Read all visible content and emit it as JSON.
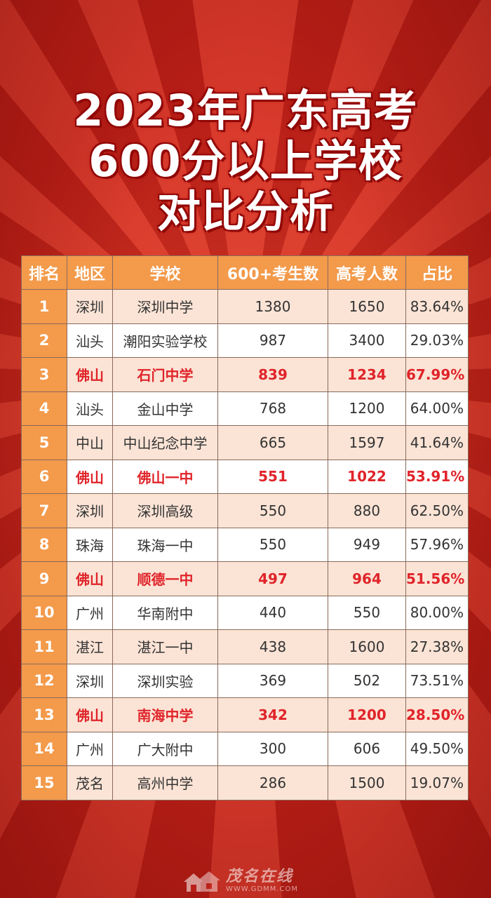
{
  "title": {
    "line1": "2023年广东高考",
    "line2": "600分以上学校",
    "line3": "对比分析"
  },
  "table": {
    "headers": [
      "排名",
      "地区",
      "学校",
      "600+考生数",
      "高考人数",
      "占比"
    ],
    "rows": [
      {
        "rank": "1",
        "region": "深圳",
        "school": "深圳中学",
        "count600": "1380",
        "total": "1650",
        "ratio": "83.64%",
        "highlight": false
      },
      {
        "rank": "2",
        "region": "汕头",
        "school": "潮阳实验学校",
        "count600": "987",
        "total": "3400",
        "ratio": "29.03%",
        "highlight": false
      },
      {
        "rank": "3",
        "region": "佛山",
        "school": "石门中学",
        "count600": "839",
        "total": "1234",
        "ratio": "67.99%",
        "highlight": true
      },
      {
        "rank": "4",
        "region": "汕头",
        "school": "金山中学",
        "count600": "768",
        "total": "1200",
        "ratio": "64.00%",
        "highlight": false
      },
      {
        "rank": "5",
        "region": "中山",
        "school": "中山纪念中学",
        "count600": "665",
        "total": "1597",
        "ratio": "41.64%",
        "highlight": false
      },
      {
        "rank": "6",
        "region": "佛山",
        "school": "佛山一中",
        "count600": "551",
        "total": "1022",
        "ratio": "53.91%",
        "highlight": true
      },
      {
        "rank": "7",
        "region": "深圳",
        "school": "深圳高级",
        "count600": "550",
        "total": "880",
        "ratio": "62.50%",
        "highlight": false
      },
      {
        "rank": "8",
        "region": "珠海",
        "school": "珠海一中",
        "count600": "550",
        "total": "949",
        "ratio": "57.96%",
        "highlight": false
      },
      {
        "rank": "9",
        "region": "佛山",
        "school": "顺德一中",
        "count600": "497",
        "total": "964",
        "ratio": "51.56%",
        "highlight": true
      },
      {
        "rank": "10",
        "region": "广州",
        "school": "华南附中",
        "count600": "440",
        "total": "550",
        "ratio": "80.00%",
        "highlight": false
      },
      {
        "rank": "11",
        "region": "湛江",
        "school": "湛江一中",
        "count600": "438",
        "total": "1600",
        "ratio": "27.38%",
        "highlight": false
      },
      {
        "rank": "12",
        "region": "深圳",
        "school": "深圳实验",
        "count600": "369",
        "total": "502",
        "ratio": "73.51%",
        "highlight": false
      },
      {
        "rank": "13",
        "region": "佛山",
        "school": "南海中学",
        "count600": "342",
        "total": "1200",
        "ratio": "28.50%",
        "highlight": true
      },
      {
        "rank": "14",
        "region": "广州",
        "school": "广大附中",
        "count600": "300",
        "total": "606",
        "ratio": "49.50%",
        "highlight": false
      },
      {
        "rank": "15",
        "region": "茂名",
        "school": "高州中学",
        "count600": "286",
        "total": "1500",
        "ratio": "19.07%",
        "highlight": false
      }
    ]
  },
  "colors": {
    "header_bg": "#f39a4b",
    "highlight_text": "#e0242a",
    "row_alt_bg": "#fbe4d6",
    "background_red": "#c9281f"
  },
  "watermark": {
    "name": "茂名在线",
    "url": "WWW.GDMM.COM",
    "icon": "house-logo-icon"
  }
}
